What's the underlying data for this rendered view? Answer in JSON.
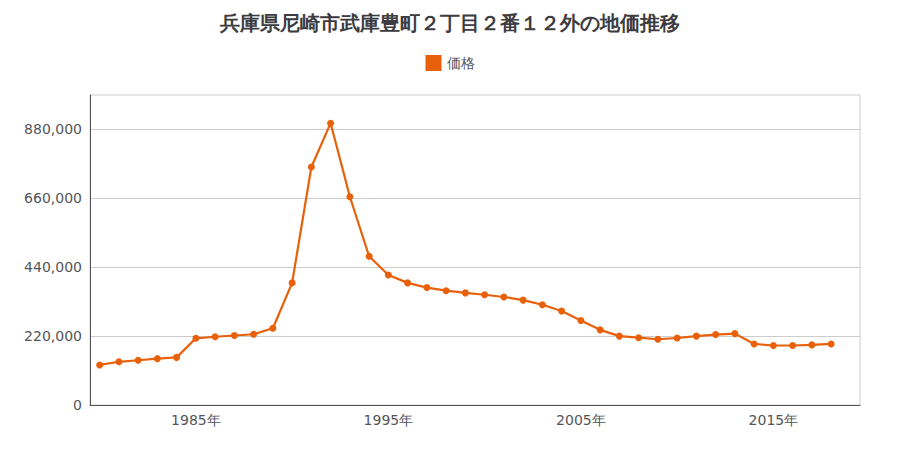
{
  "chart_data": {
    "type": "line",
    "title": "兵庫県尼崎市武庫豊町２丁目２番１２外の地価推移",
    "x": [
      1980,
      1981,
      1982,
      1983,
      1984,
      1985,
      1986,
      1987,
      1988,
      1989,
      1990,
      1991,
      1992,
      1993,
      1994,
      1995,
      1996,
      1997,
      1998,
      1999,
      2000,
      2001,
      2002,
      2003,
      2004,
      2005,
      2006,
      2007,
      2008,
      2009,
      2010,
      2011,
      2012,
      2013,
      2014,
      2015,
      2016,
      2017,
      2018
    ],
    "series": [
      {
        "name": "価格",
        "color": "#E8600A",
        "marker": "circle",
        "values": [
          128000,
          138000,
          143000,
          148000,
          152000,
          213000,
          218000,
          222000,
          226000,
          245000,
          390000,
          760000,
          900000,
          665000,
          475000,
          415000,
          390000,
          375000,
          365000,
          358000,
          352000,
          345000,
          335000,
          320000,
          300000,
          270000,
          240000,
          220000,
          215000,
          210000,
          214000,
          220000,
          225000,
          228000,
          195000,
          190000,
          190000,
          192000,
          195000
        ]
      }
    ],
    "xlim": [
      1979.5,
      2019.5
    ],
    "xticks": [
      {
        "value": 1985,
        "label": "1985年"
      },
      {
        "value": 1995,
        "label": "1995年"
      },
      {
        "value": 2005,
        "label": "2005年"
      },
      {
        "value": 2015,
        "label": "2015年"
      }
    ],
    "ylim": [
      0,
      990000
    ],
    "yticks": [
      0,
      {
        "value": 220000,
        "label": "220,000"
      },
      {
        "value": 440000,
        "label": "440,000"
      },
      {
        "value": 660000,
        "label": "660,000"
      },
      {
        "value": 880000,
        "label": "880,000"
      }
    ],
    "grid": true,
    "legend": "top"
  }
}
